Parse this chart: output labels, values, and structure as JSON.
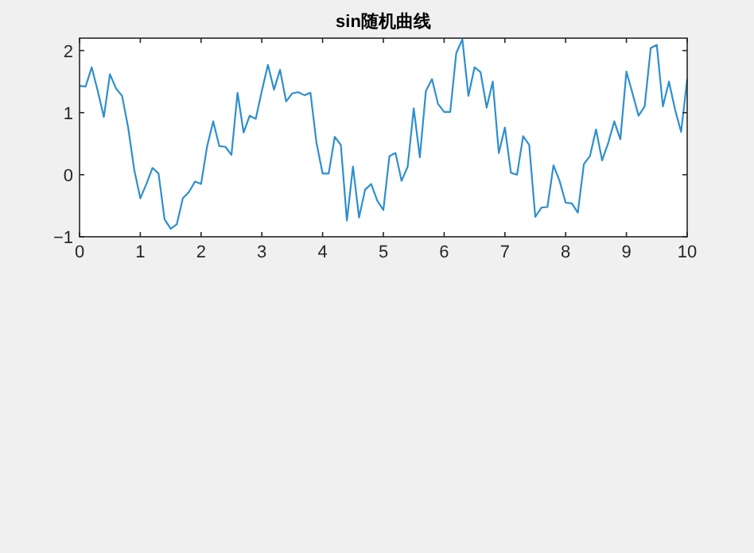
{
  "chart_data": {
    "type": "line",
    "title": "sin随机曲线",
    "x": [
      0,
      0.1,
      0.2,
      0.3,
      0.4,
      0.5,
      0.6,
      0.7,
      0.8,
      0.9,
      1,
      1.1,
      1.2,
      1.3,
      1.4,
      1.5,
      1.6,
      1.7,
      1.8,
      1.9,
      2,
      2.1,
      2.2,
      2.3,
      2.4,
      2.5,
      2.6,
      2.7,
      2.8,
      2.9,
      3,
      3.1,
      3.2,
      3.3,
      3.4,
      3.5,
      3.6,
      3.7,
      3.8,
      3.9,
      4,
      4.1,
      4.2,
      4.3,
      4.4,
      4.5,
      4.6,
      4.7,
      4.8,
      4.9,
      5,
      5.1,
      5.2,
      5.3,
      5.4,
      5.5,
      5.6,
      5.7,
      5.8,
      5.9,
      6,
      6.1,
      6.2,
      6.3,
      6.4,
      6.5,
      6.6,
      6.7,
      6.8,
      6.9,
      7,
      7.1,
      7.2,
      7.3,
      7.4,
      7.5,
      7.6,
      7.7,
      7.8,
      7.9,
      8,
      8.1,
      8.2,
      8.3,
      8.4,
      8.5,
      8.6,
      8.7,
      8.8,
      8.9,
      9,
      9.1,
      9.2,
      9.3,
      9.4,
      9.5,
      9.6,
      9.7,
      9.8,
      9.9,
      10
    ],
    "series": [
      {
        "color": "#2e8fcf",
        "values": [
          1.43,
          1.42,
          1.73,
          1.35,
          0.93,
          1.62,
          1.39,
          1.27,
          0.76,
          0.08,
          -0.38,
          -0.15,
          0.11,
          0.02,
          -0.72,
          -0.87,
          -0.8,
          -0.38,
          -0.28,
          -0.11,
          -0.15,
          0.46,
          0.86,
          0.46,
          0.45,
          0.32,
          1.32,
          0.68,
          0.95,
          0.9,
          1.35,
          1.77,
          1.37,
          1.69,
          1.18,
          1.31,
          1.33,
          1.28,
          1.32,
          0.51,
          0.02,
          0.02,
          0.61,
          0.48,
          -0.74,
          0.13,
          -0.69,
          -0.24,
          -0.15,
          -0.42,
          -0.57,
          0.3,
          0.35,
          -0.1,
          0.13,
          1.07,
          0.28,
          1.35,
          1.54,
          1.14,
          1.01,
          1.01,
          1.96,
          2.18,
          1.27,
          1.73,
          1.65,
          1.08,
          1.5,
          0.35,
          0.76,
          0.03,
          0,
          0.62,
          0.48,
          -0.68,
          -0.53,
          -0.52,
          0.15,
          -0.1,
          -0.45,
          -0.46,
          -0.61,
          0.17,
          0.3,
          0.73,
          0.23,
          0.51,
          0.86,
          0.57,
          1.66,
          1.31,
          0.95,
          1.1,
          2.04,
          2.09,
          1.1,
          1.5,
          1.05,
          0.69,
          1.54
        ]
      }
    ],
    "xlim": [
      0,
      10
    ],
    "ylim": [
      -1,
      2.2
    ],
    "xticks": [
      0,
      1,
      2,
      3,
      4,
      5,
      6,
      7,
      8,
      9,
      10
    ],
    "yticks": [
      -1,
      0,
      1,
      2
    ]
  }
}
